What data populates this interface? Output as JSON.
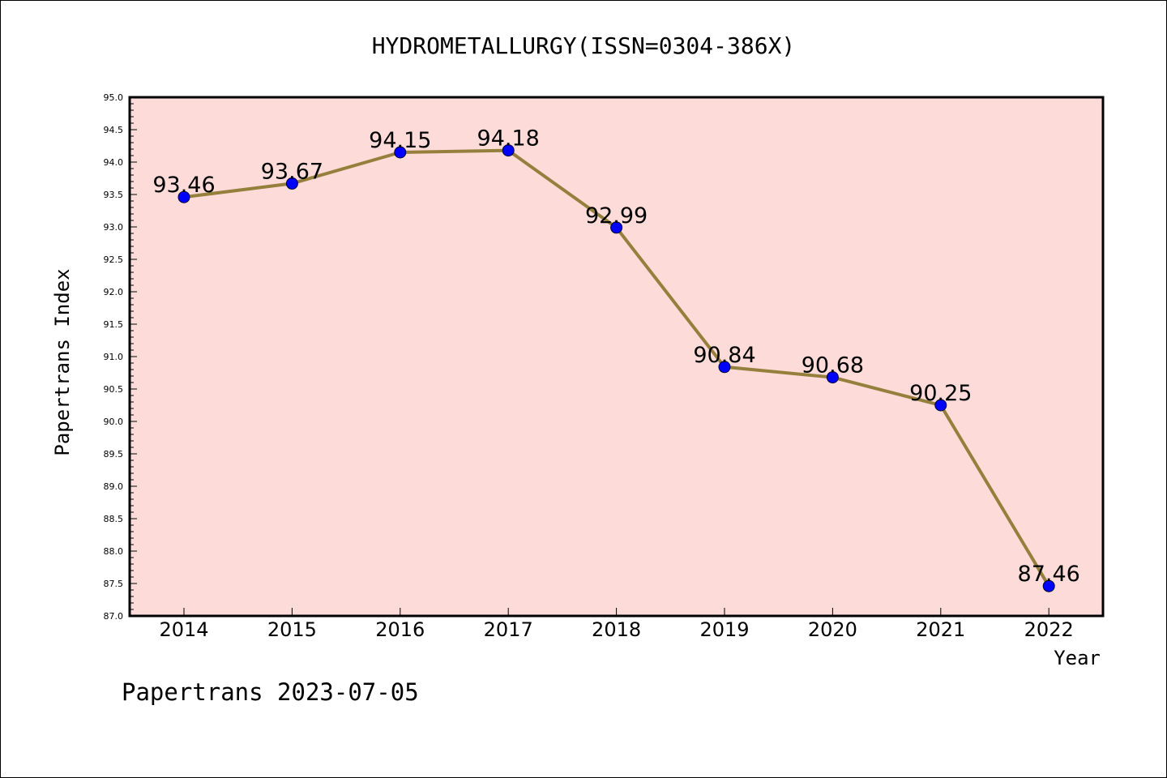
{
  "chart_data": {
    "type": "line",
    "title": "HYDROMETALLURGY(ISSN=0304-386X)",
    "xlabel": "Year",
    "ylabel": "Papertrans Index",
    "x": [
      "2014",
      "2015",
      "2016",
      "2017",
      "2018",
      "2019",
      "2020",
      "2021",
      "2022"
    ],
    "series": [
      {
        "values": [
          93.46,
          93.67,
          94.15,
          94.18,
          92.99,
          90.84,
          90.68,
          90.25,
          87.46
        ],
        "labels": [
          "93.46",
          "93.67",
          "94.15",
          "94.18",
          "92.99",
          "90.84",
          "90.68",
          "90.25",
          "87.46"
        ]
      }
    ],
    "ylim": [
      87.0,
      95.0
    ],
    "ytick_labels": [
      "87.0",
      "87.5",
      "88.0",
      "88.5",
      "89.0",
      "89.5",
      "90.0",
      "90.5",
      "91.0",
      "91.5",
      "92.0",
      "92.5",
      "93.0",
      "93.5",
      "94.0",
      "94.5",
      "95.0"
    ],
    "grid": false,
    "colors": {
      "plot_background": "#fddbd8",
      "line": "#94803c",
      "marker": "#0000ff"
    }
  },
  "footer": "Papertrans 2023-07-05"
}
